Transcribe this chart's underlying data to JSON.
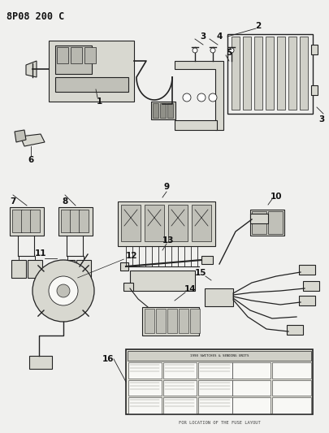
{
  "title": "8P08 200 C",
  "bg_color": "#f0f0ee",
  "fg_color": "#111111",
  "figsize": [
    4.05,
    5.33
  ],
  "dpi": 100,
  "title_fontsize": 8.5,
  "label_fontsize": 7.0,
  "line_color": "#222222",
  "fill_light": "#d8d8d0",
  "fill_mid": "#c0c0b8",
  "fill_white": "#f8f8f5",
  "bottom_text": "FOR LOCATION OF THE FUSE LAYOUT"
}
